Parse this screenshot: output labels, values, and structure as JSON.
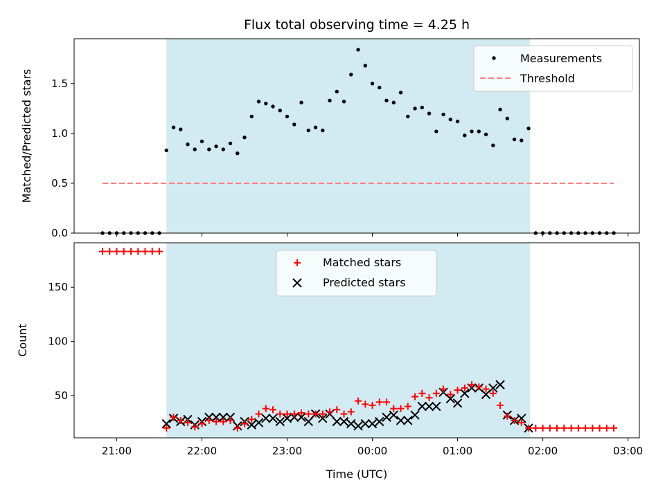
{
  "chart_data": [
    {
      "type": "scatter",
      "title": "Flux total observing time = 4.25 h",
      "xlabel": "",
      "ylabel": "Matched/Predicted stars",
      "xlim": [
        "20:30",
        "03:08"
      ],
      "ylim": [
        0,
        1.95
      ],
      "yticks": [
        0.0,
        0.5,
        1.0,
        1.5
      ],
      "ytick_labels": [
        "0.0",
        "0.5",
        "1.0",
        "1.5"
      ],
      "shaded_interval": [
        "21:35",
        "01:51"
      ],
      "shade_color": "#add8e6",
      "legend_position": "upper-right",
      "legend": [
        "Measurements",
        "Threshold"
      ],
      "series": [
        {
          "name": "Measurements",
          "marker": "dot",
          "color": "#000000",
          "x": [
            "20:50",
            "20:55",
            "21:00",
            "21:05",
            "21:10",
            "21:15",
            "21:20",
            "21:25",
            "21:30",
            "21:35",
            "21:40",
            "21:45",
            "21:50",
            "21:55",
            "22:00",
            "22:05",
            "22:10",
            "22:15",
            "22:20",
            "22:25",
            "22:30",
            "22:35",
            "22:40",
            "22:45",
            "22:50",
            "22:55",
            "23:00",
            "23:05",
            "23:10",
            "23:15",
            "23:20",
            "23:25",
            "23:30",
            "23:35",
            "23:40",
            "23:45",
            "23:50",
            "23:55",
            "00:00",
            "00:05",
            "00:10",
            "00:15",
            "00:20",
            "00:25",
            "00:30",
            "00:35",
            "00:40",
            "00:45",
            "00:50",
            "00:55",
            "01:00",
            "01:05",
            "01:10",
            "01:15",
            "01:20",
            "01:25",
            "01:30",
            "01:35",
            "01:40",
            "01:45",
            "01:50",
            "01:55",
            "02:00",
            "02:05",
            "02:10",
            "02:15",
            "02:20",
            "02:25",
            "02:30",
            "02:35",
            "02:40",
            "02:45",
            "02:50"
          ],
          "y": [
            0,
            0,
            0,
            0,
            0,
            0,
            0,
            0,
            0,
            0.83,
            1.06,
            1.04,
            0.89,
            0.84,
            0.92,
            0.84,
            0.87,
            0.84,
            0.9,
            0.8,
            0.96,
            1.17,
            1.32,
            1.3,
            1.27,
            1.23,
            1.17,
            1.09,
            1.31,
            1.03,
            1.06,
            1.03,
            1.33,
            1.42,
            1.32,
            1.59,
            1.84,
            1.68,
            1.5,
            1.46,
            1.33,
            1.31,
            1.41,
            1.17,
            1.25,
            1.26,
            1.2,
            1.02,
            1.19,
            1.14,
            1.12,
            0.98,
            1.02,
            1.02,
            0.99,
            0.88,
            1.24,
            1.15,
            0.94,
            0.93,
            1.05,
            0,
            0,
            0,
            0,
            0,
            0,
            0,
            0,
            0,
            0,
            0,
            0
          ]
        },
        {
          "name": "Threshold",
          "style": "dashed",
          "color": "#ff8080",
          "x": [
            "20:50",
            "02:50"
          ],
          "y": [
            0.5,
            0.5
          ]
        }
      ]
    },
    {
      "type": "scatter",
      "xlabel": "Time (UTC)",
      "ylabel": "Count",
      "xlim": [
        "20:30",
        "03:08"
      ],
      "ylim": [
        11,
        191
      ],
      "xticks": [
        "21:00",
        "22:00",
        "23:00",
        "00:00",
        "01:00",
        "02:00",
        "03:00"
      ],
      "yticks": [
        50,
        100,
        150
      ],
      "ytick_labels": [
        "50",
        "100",
        "150"
      ],
      "shaded_interval": [
        "21:35",
        "01:51"
      ],
      "shade_color": "#add8e6",
      "legend_position": "upper-center",
      "legend": [
        "Matched stars",
        "Predicted stars"
      ],
      "series": [
        {
          "name": "Matched stars",
          "marker": "plus",
          "color": "#ff0000",
          "x": [
            "20:50",
            "20:55",
            "21:00",
            "21:05",
            "21:10",
            "21:15",
            "21:20",
            "21:25",
            "21:30",
            "21:35",
            "21:40",
            "21:45",
            "21:50",
            "21:55",
            "22:00",
            "22:05",
            "22:10",
            "22:15",
            "22:20",
            "22:25",
            "22:30",
            "22:35",
            "22:40",
            "22:45",
            "22:50",
            "22:55",
            "23:00",
            "23:05",
            "23:10",
            "23:15",
            "23:20",
            "23:25",
            "23:30",
            "23:35",
            "23:40",
            "23:45",
            "23:50",
            "23:55",
            "00:00",
            "00:05",
            "00:10",
            "00:15",
            "00:20",
            "00:25",
            "00:30",
            "00:35",
            "00:40",
            "00:45",
            "00:50",
            "00:55",
            "01:00",
            "01:05",
            "01:10",
            "01:15",
            "01:20",
            "01:25",
            "01:30",
            "01:35",
            "01:40",
            "01:45",
            "01:50",
            "01:55",
            "02:00",
            "02:05",
            "02:10",
            "02:15",
            "02:20",
            "02:25",
            "02:30",
            "02:35",
            "02:40",
            "02:45",
            "02:50"
          ],
          "y": [
            183,
            183,
            183,
            183,
            183,
            183,
            183,
            183,
            183,
            20,
            30,
            27,
            25,
            21,
            24,
            27,
            26,
            26,
            27,
            20,
            24,
            28,
            33,
            38,
            37,
            33,
            33,
            33,
            34,
            33,
            33,
            33,
            35,
            37,
            33,
            35,
            45,
            42,
            41,
            44,
            44,
            38,
            38,
            40,
            49,
            52,
            48,
            52,
            56,
            51,
            55,
            57,
            60,
            58,
            56,
            52,
            41,
            31,
            27,
            25,
            20,
            20,
            20,
            20,
            20,
            20,
            20,
            20,
            20,
            20,
            20,
            20,
            20
          ]
        },
        {
          "name": "Predicted stars",
          "marker": "x",
          "color": "#000000",
          "x": [
            "21:35",
            "21:40",
            "21:45",
            "21:50",
            "21:55",
            "22:00",
            "22:05",
            "22:10",
            "22:15",
            "22:20",
            "22:25",
            "22:30",
            "22:35",
            "22:40",
            "22:45",
            "22:50",
            "22:55",
            "23:00",
            "23:05",
            "23:10",
            "23:15",
            "23:20",
            "23:25",
            "23:30",
            "23:35",
            "23:40",
            "23:45",
            "23:50",
            "23:55",
            "00:00",
            "00:05",
            "00:10",
            "00:15",
            "00:20",
            "00:25",
            "00:30",
            "00:35",
            "00:40",
            "00:45",
            "00:50",
            "00:55",
            "01:00",
            "01:05",
            "01:10",
            "01:15",
            "01:20",
            "01:25",
            "01:30",
            "01:35",
            "01:40",
            "01:45",
            "01:50"
          ],
          "y": [
            24,
            29,
            26,
            28,
            23,
            26,
            30,
            30,
            30,
            30,
            22,
            26,
            23,
            25,
            29,
            29,
            26,
            29,
            30,
            30,
            26,
            33,
            29,
            33,
            26,
            26,
            24,
            22,
            24,
            24,
            26,
            30,
            32,
            27,
            27,
            32,
            40,
            40,
            40,
            53,
            47,
            43,
            52,
            57,
            57,
            51,
            57,
            60,
            32,
            27,
            29,
            20
          ]
        }
      ]
    }
  ]
}
